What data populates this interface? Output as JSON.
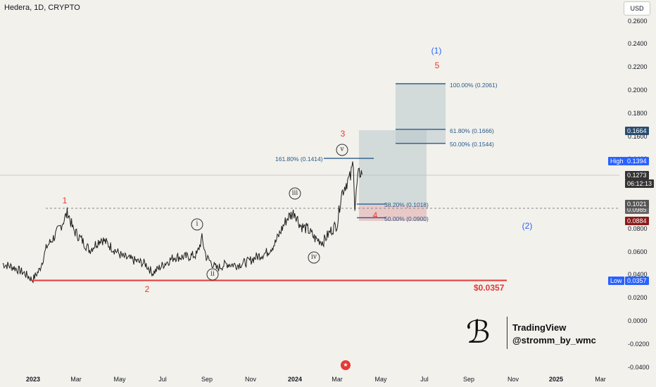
{
  "header": {
    "title": "Hedera, 1D, CRYPTO",
    "currency_button": "USD"
  },
  "brand": {
    "name": "TradingView",
    "handle": "@stromm_by_wmc",
    "logo_icon": "sb-monogram-icon"
  },
  "event_icon": "us-flag-event-icon",
  "chart_data": {
    "type": "line",
    "title": "Hedera, 1D, CRYPTO",
    "x_ticks": [
      "2023",
      "Mar",
      "May",
      "Jul",
      "Sep",
      "Nov",
      "2024",
      "Mar",
      "May",
      "Jul",
      "Sep",
      "Nov",
      "2025",
      "Mar"
    ],
    "y_ticks": [
      "0.2600",
      "0.2400",
      "0.2200",
      "0.2000",
      "0.1800",
      "0.1600",
      "0.1400",
      "0.1200",
      "0.1000",
      "0.0800",
      "0.0600",
      "0.0400",
      "0.0200",
      "0.0000",
      "-0.0200",
      "-0.0400"
    ],
    "ylim": [
      -0.04,
      0.26
    ],
    "series": [
      {
        "values": [
          [
            "2022-11-20",
            0.05
          ],
          [
            "2022-12-05",
            0.047
          ],
          [
            "2022-12-20",
            0.042
          ],
          [
            "2022-12-31",
            0.036
          ],
          [
            "2023-01-10",
            0.045
          ],
          [
            "2023-01-20",
            0.065
          ],
          [
            "2023-02-01",
            0.075
          ],
          [
            "2023-02-10",
            0.085
          ],
          [
            "2023-02-18",
            0.095
          ],
          [
            "2023-02-25",
            0.08
          ],
          [
            "2023-03-10",
            0.07
          ],
          [
            "2023-03-20",
            0.062
          ],
          [
            "2023-04-05",
            0.072
          ],
          [
            "2023-04-20",
            0.064
          ],
          [
            "2023-05-05",
            0.056
          ],
          [
            "2023-05-20",
            0.053
          ],
          [
            "2023-06-05",
            0.05
          ],
          [
            "2023-06-15",
            0.042
          ],
          [
            "2023-07-01",
            0.05
          ],
          [
            "2023-07-15",
            0.056
          ],
          [
            "2023-08-01",
            0.056
          ],
          [
            "2023-08-15",
            0.058
          ],
          [
            "2023-08-22",
            0.072
          ],
          [
            "2023-08-28",
            0.056
          ],
          [
            "2023-09-11",
            0.046
          ],
          [
            "2023-09-25",
            0.05
          ],
          [
            "2023-10-10",
            0.049
          ],
          [
            "2023-10-25",
            0.052
          ],
          [
            "2023-11-05",
            0.056
          ],
          [
            "2023-11-20",
            0.06
          ],
          [
            "2023-12-01",
            0.068
          ],
          [
            "2023-12-10",
            0.08
          ],
          [
            "2023-12-18",
            0.09
          ],
          [
            "2023-12-28",
            0.095
          ],
          [
            "2024-01-05",
            0.083
          ],
          [
            "2024-01-15",
            0.08
          ],
          [
            "2024-01-25",
            0.072
          ],
          [
            "2024-02-05",
            0.069
          ],
          [
            "2024-02-15",
            0.078
          ],
          [
            "2024-02-25",
            0.085
          ],
          [
            "2024-03-01",
            0.11
          ],
          [
            "2024-03-08",
            0.12
          ],
          [
            "2024-03-14",
            0.125
          ],
          [
            "2024-03-18",
            0.1394
          ],
          [
            "2024-03-20",
            0.098
          ],
          [
            "2024-03-24",
            0.125
          ],
          [
            "2024-03-28",
            0.13
          ],
          [
            "2024-03-30",
            0.1273
          ]
        ]
      }
    ],
    "current_price": "0.1273",
    "countdown": "06:12:13",
    "high": {
      "label": "High",
      "value": "0.1394"
    },
    "low": {
      "label": "Low",
      "value": "0.0357"
    },
    "right_badges": [
      "0.1664",
      "0.1021",
      "0.0884"
    ],
    "hidden_badge_fragment": "0.0985",
    "dashed_level": 0.1021,
    "support": {
      "value": 0.0357,
      "label": "$0.0357"
    },
    "fib_levels": [
      {
        "label": "161.80% (0.1414)",
        "value": 0.1414
      },
      {
        "label": "38.20% (0.1018)",
        "value": 0.1018
      },
      {
        "label": "50.00% (0.0900)",
        "value": 0.09
      },
      {
        "label": "100.00% (0.2061)",
        "value": 0.2061
      },
      {
        "label": "61.80% (0.1666)",
        "value": 0.1666
      },
      {
        "label": "50.00% (0.1544)",
        "value": 0.1544
      }
    ],
    "wave_labels": {
      "red": [
        "1",
        "2",
        "3",
        "4",
        "5"
      ],
      "blue": [
        "(1)",
        "(2)"
      ],
      "roman": [
        "i",
        "ii",
        "iii",
        "iv",
        "v"
      ]
    }
  }
}
